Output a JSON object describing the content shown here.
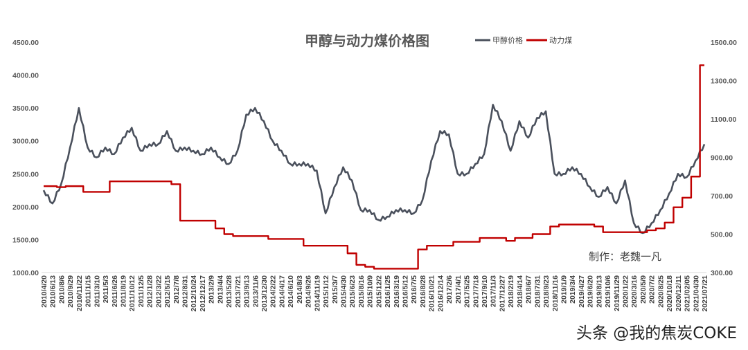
{
  "watermark": "头条 @我的焦炭COKE",
  "chart_data": {
    "type": "line",
    "title": "甲醇与动力煤价格图",
    "credit": "制作：老魏一凡",
    "legend_position": "top-right",
    "grid": false,
    "categories": [
      "2010/4/20",
      "2010/6/13",
      "2010/8/6",
      "2010/9/29",
      "2010/11/22",
      "2011/1/15",
      "2011/3/10",
      "2011/5/3",
      "2011/6/26",
      "2011/8/19",
      "2011/10/12",
      "2011/12/5",
      "2012/1/28",
      "2012/3/22",
      "2012/5/15",
      "2012/7/8",
      "2012/8/31",
      "2012/10/24",
      "2012/12/17",
      "2013/2/9",
      "2013/4/4",
      "2013/5/28",
      "2013/7/21",
      "2013/9/13",
      "2013/11/6",
      "2013/12/30",
      "2014/2/22",
      "2014/4/17",
      "2014/6/10",
      "2014/8/3",
      "2014/9/26",
      "2014/11/19",
      "2015/1/12",
      "2015/3/7",
      "2015/4/30",
      "2015/6/23",
      "2015/8/16",
      "2015/10/9",
      "2015/12/2",
      "2016/1/25",
      "2016/3/19",
      "2016/5/12",
      "2016/7/5",
      "2016/8/28",
      "2016/10/21",
      "2016/12/14",
      "2017/2/6",
      "2017/4/1",
      "2017/5/25",
      "2017/7/18",
      "2017/9/10",
      "2017/11/3",
      "2017/12/27",
      "2018/2/19",
      "2018/4/14",
      "2018/6/7",
      "2018/7/31",
      "2018/9/23",
      "2018/11/16",
      "2019/1/9",
      "2019/3/4",
      "2019/4/27",
      "2019/6/20",
      "2019/8/13",
      "2019/10/6",
      "2019/11/29",
      "2020/1/22",
      "2020/3/16",
      "2020/5/9",
      "2020/7/2",
      "2020/8/25",
      "2020/10/18",
      "2020/12/11",
      "2021/02/05",
      "2021/04/30",
      "2021/07/21"
    ],
    "y_left": {
      "range": [
        1000,
        4500
      ],
      "ticks": [
        "1000.00",
        "1500.00",
        "2000.00",
        "2500.00",
        "3000.00",
        "3500.00",
        "4000.00",
        "4500.00"
      ]
    },
    "y_right": {
      "range": [
        300,
        1500
      ],
      "ticks": [
        "300.00",
        "500.00",
        "700.00",
        "900.00",
        "1100.00",
        "1300.00",
        "1500.00"
      ]
    },
    "series": [
      {
        "name": "甲醇价格",
        "axis": "left",
        "color": "#4a505c",
        "values": [
          2250,
          2050,
          2350,
          2900,
          3500,
          2900,
          2750,
          2900,
          2800,
          3050,
          3200,
          2850,
          2950,
          2950,
          3150,
          2850,
          2900,
          2850,
          2800,
          2900,
          2750,
          2650,
          2850,
          3400,
          3500,
          3300,
          3000,
          2850,
          2650,
          2650,
          2650,
          2550,
          1900,
          2300,
          2600,
          2400,
          1950,
          1950,
          1800,
          1850,
          1950,
          1950,
          1900,
          2100,
          2700,
          3150,
          3100,
          2500,
          2500,
          2650,
          2800,
          3550,
          3300,
          2850,
          3300,
          3050,
          3350,
          3450,
          2500,
          2500,
          2600,
          2500,
          2300,
          2150,
          2300,
          2050,
          2400,
          1750,
          1600,
          1750,
          1950,
          2200,
          2500,
          2450,
          2700,
          2950
        ]
      },
      {
        "name": "动力煤",
        "axis": "right",
        "color": "#c00000",
        "values": [
          750,
          750,
          745,
          750,
          750,
          720,
          720,
          720,
          775,
          775,
          775,
          775,
          775,
          775,
          775,
          760,
          570,
          570,
          570,
          570,
          530,
          500,
          490,
          490,
          490,
          490,
          475,
          475,
          475,
          475,
          440,
          440,
          440,
          440,
          440,
          400,
          340,
          330,
          320,
          320,
          320,
          320,
          320,
          420,
          440,
          440,
          440,
          460,
          460,
          460,
          480,
          480,
          480,
          465,
          480,
          480,
          500,
          500,
          540,
          550,
          550,
          550,
          550,
          540,
          510,
          510,
          510,
          510,
          510,
          520,
          530,
          560,
          640,
          690,
          800,
          1380
        ]
      }
    ]
  }
}
